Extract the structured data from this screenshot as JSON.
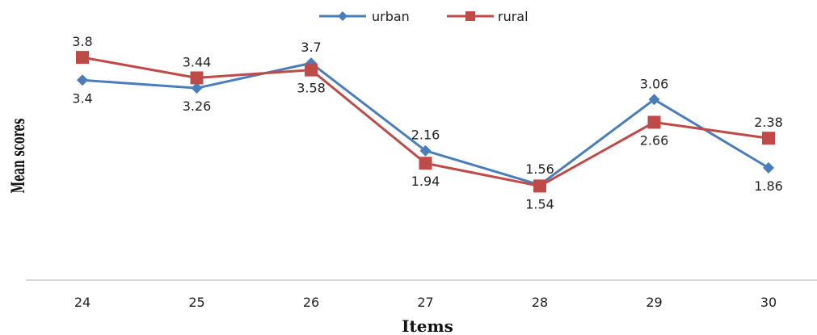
{
  "chart_data": {
    "type": "line",
    "title": "",
    "xlabel": "Items",
    "ylabel": "Mean scores",
    "categories": [
      "24",
      "25",
      "26",
      "27",
      "28",
      "29",
      "30"
    ],
    "series": [
      {
        "name": "urban",
        "color": "#4a7ebb",
        "marker": "diamond",
        "values": [
          3.4,
          3.26,
          3.7,
          2.16,
          1.56,
          3.06,
          1.86
        ]
      },
      {
        "name": "rural",
        "color": "#be4b48",
        "marker": "square",
        "values": [
          3.8,
          3.44,
          3.58,
          1.94,
          1.54,
          2.66,
          2.38
        ]
      }
    ],
    "grid": false,
    "legend_position": "top-center"
  }
}
